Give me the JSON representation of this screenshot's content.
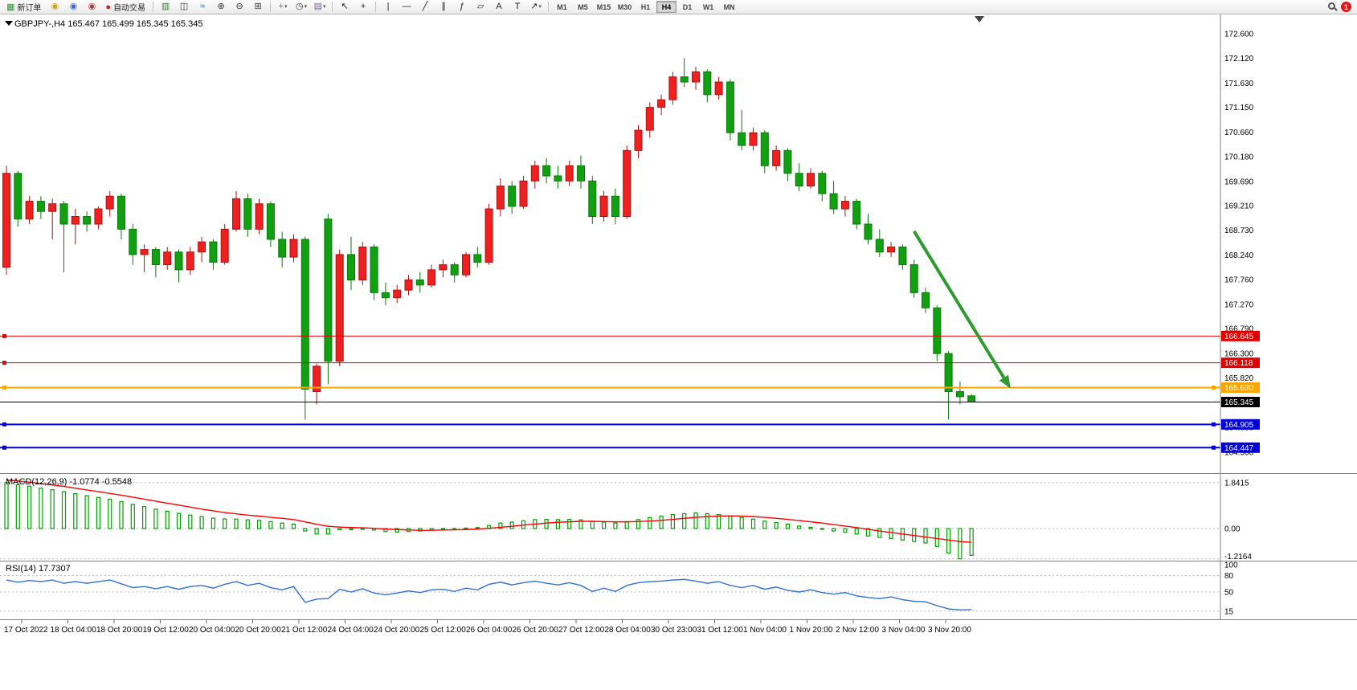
{
  "toolbar": {
    "items": [
      {
        "kind": "btn",
        "name": "new-order-button",
        "glyph": "▦",
        "color": "#2d9a2d",
        "label": "新订单"
      },
      {
        "kind": "ico",
        "name": "charts-community-icon",
        "glyph": "◉",
        "color": "#c8a020"
      },
      {
        "kind": "ico",
        "name": "profile-icon",
        "glyph": "◉",
        "color": "#4066c8"
      },
      {
        "kind": "ico",
        "name": "signals-icon",
        "glyph": "◉",
        "color": "#a04040"
      },
      {
        "kind": "btn",
        "name": "autotrading-button",
        "glyph": "●",
        "color": "#d02020",
        "label": "自动交易"
      },
      {
        "kind": "sep"
      },
      {
        "kind": "ico",
        "name": "bar-chart-icon",
        "glyph": "▥",
        "color": "#3a7a3a"
      },
      {
        "kind": "ico",
        "name": "candlestick-chart-icon",
        "glyph": "◫",
        "color": "#333333"
      },
      {
        "kind": "ico",
        "name": "line-chart-icon",
        "glyph": "≈",
        "color": "#3060c0"
      },
      {
        "kind": "ico",
        "name": "zoom-in-icon",
        "glyph": "⊕",
        "color": "#333333"
      },
      {
        "kind": "ico",
        "name": "zoom-out-icon",
        "glyph": "⊖",
        "color": "#333333"
      },
      {
        "kind": "ico",
        "name": "tile-windows-icon",
        "glyph": "⊞",
        "color": "#333333"
      },
      {
        "kind": "sep"
      },
      {
        "kind": "ico",
        "name": "indicators-icon",
        "glyph": "+",
        "color": "#2d9a2d",
        "dropdown": true
      },
      {
        "kind": "ico",
        "name": "timeframes-icon",
        "glyph": "◷",
        "color": "#333333",
        "dropdown": true
      },
      {
        "kind": "ico",
        "name": "templates-icon",
        "glyph": "▤",
        "color": "#8060a0",
        "dropdown": true
      },
      {
        "kind": "sep"
      },
      {
        "kind": "ico",
        "name": "cursor-icon",
        "glyph": "↖",
        "color": "#222222"
      },
      {
        "kind": "ico",
        "name": "crosshair-icon",
        "glyph": "+",
        "color": "#222222"
      },
      {
        "kind": "sep"
      },
      {
        "kind": "ico",
        "name": "vertical-line-icon",
        "glyph": "|",
        "color": "#222222"
      },
      {
        "kind": "ico",
        "name": "horizontal-line-icon",
        "glyph": "—",
        "color": "#222222"
      },
      {
        "kind": "ico",
        "name": "trendline-icon",
        "glyph": "╱",
        "color": "#222222"
      },
      {
        "kind": "ico",
        "name": "channel-icon",
        "glyph": "∥",
        "color": "#222222"
      },
      {
        "kind": "ico",
        "name": "fibonacci-icon",
        "glyph": "ƒ",
        "color": "#222222"
      },
      {
        "kind": "ico",
        "name": "shapes-icon",
        "glyph": "▱",
        "color": "#222222"
      },
      {
        "kind": "ico",
        "name": "text-icon",
        "glyph": "A",
        "color": "#222222"
      },
      {
        "kind": "ico",
        "name": "label-icon",
        "glyph": "T",
        "color": "#222222"
      },
      {
        "kind": "ico",
        "name": "arrows-icon",
        "glyph": "↗",
        "color": "#222222",
        "dropdown": true
      },
      {
        "kind": "sep"
      }
    ],
    "timeframes": [
      "M1",
      "M5",
      "M15",
      "M30",
      "H1",
      "H4",
      "D1",
      "W1",
      "MN"
    ],
    "active_timeframe": "H4",
    "notification_count": "1"
  },
  "chart_data": {
    "type": "candlestick",
    "symbol": "GBPJPY-",
    "timeframe": "H4",
    "ohlc_title": "GBPJPY-,H4  165.467 165.499 165.345 165.345",
    "colors": {
      "bull": "#ee2020",
      "bull_border": "#b01010",
      "bear": "#10a010",
      "bear_border": "#0a7a0a",
      "background": "#ffffff",
      "axis_text": "#000000"
    },
    "candles": [
      [
        168.0,
        170.0,
        167.85,
        169.85
      ],
      [
        169.85,
        169.9,
        168.8,
        168.95
      ],
      [
        168.95,
        169.4,
        168.85,
        169.3
      ],
      [
        169.3,
        169.4,
        168.95,
        169.1
      ],
      [
        169.1,
        169.35,
        168.55,
        169.25
      ],
      [
        169.25,
        169.3,
        167.9,
        168.85
      ],
      [
        168.85,
        169.15,
        168.45,
        169.0
      ],
      [
        169.0,
        169.1,
        168.7,
        168.85
      ],
      [
        168.85,
        169.2,
        168.75,
        169.15
      ],
      [
        169.15,
        169.5,
        169.0,
        169.4
      ],
      [
        169.4,
        169.45,
        168.55,
        168.75
      ],
      [
        168.75,
        168.85,
        168.05,
        168.25
      ],
      [
        168.25,
        168.45,
        167.9,
        168.35
      ],
      [
        168.35,
        168.4,
        167.8,
        168.05
      ],
      [
        168.05,
        168.4,
        167.95,
        168.3
      ],
      [
        168.3,
        168.35,
        167.7,
        167.95
      ],
      [
        167.95,
        168.4,
        167.85,
        168.3
      ],
      [
        168.3,
        168.6,
        168.1,
        168.5
      ],
      [
        168.5,
        168.55,
        167.95,
        168.1
      ],
      [
        168.1,
        168.85,
        168.05,
        168.75
      ],
      [
        168.75,
        169.5,
        168.7,
        169.35
      ],
      [
        169.35,
        169.45,
        168.6,
        168.75
      ],
      [
        168.75,
        169.35,
        168.65,
        169.25
      ],
      [
        169.25,
        169.3,
        168.4,
        168.55
      ],
      [
        168.55,
        168.7,
        168.0,
        168.2
      ],
      [
        168.2,
        168.65,
        168.1,
        168.55
      ],
      [
        168.55,
        168.6,
        165.0,
        165.6
      ],
      [
        165.55,
        166.1,
        165.3,
        166.05
      ],
      [
        168.95,
        169.05,
        165.7,
        166.15
      ],
      [
        166.15,
        168.35,
        166.05,
        168.25
      ],
      [
        168.25,
        168.6,
        167.55,
        167.75
      ],
      [
        167.75,
        168.5,
        167.65,
        168.4
      ],
      [
        168.4,
        168.45,
        167.35,
        167.5
      ],
      [
        167.5,
        167.7,
        167.25,
        167.4
      ],
      [
        167.4,
        167.65,
        167.3,
        167.55
      ],
      [
        167.55,
        167.85,
        167.45,
        167.75
      ],
      [
        167.75,
        167.9,
        167.5,
        167.65
      ],
      [
        167.65,
        168.05,
        167.6,
        167.95
      ],
      [
        167.95,
        168.15,
        167.8,
        168.05
      ],
      [
        168.05,
        168.1,
        167.7,
        167.85
      ],
      [
        167.85,
        168.3,
        167.8,
        168.25
      ],
      [
        168.25,
        168.4,
        168.0,
        168.1
      ],
      [
        168.1,
        169.25,
        168.05,
        169.15
      ],
      [
        169.15,
        169.75,
        169.0,
        169.6
      ],
      [
        169.6,
        169.7,
        169.05,
        169.2
      ],
      [
        169.2,
        169.8,
        169.15,
        169.7
      ],
      [
        169.7,
        170.1,
        169.55,
        170.0
      ],
      [
        170.0,
        170.15,
        169.65,
        169.8
      ],
      [
        169.8,
        170.0,
        169.55,
        169.7
      ],
      [
        169.7,
        170.1,
        169.6,
        170.0
      ],
      [
        170.0,
        170.2,
        169.55,
        169.7
      ],
      [
        169.7,
        169.8,
        168.85,
        169.0
      ],
      [
        169.0,
        169.5,
        168.9,
        169.4
      ],
      [
        169.4,
        169.55,
        168.85,
        169.0
      ],
      [
        169.0,
        170.4,
        168.95,
        170.3
      ],
      [
        170.3,
        170.8,
        170.15,
        170.7
      ],
      [
        170.7,
        171.25,
        170.55,
        171.15
      ],
      [
        171.15,
        171.4,
        171.0,
        171.3
      ],
      [
        171.3,
        171.85,
        171.2,
        171.75
      ],
      [
        171.75,
        172.12,
        171.55,
        171.65
      ],
      [
        171.65,
        171.95,
        171.5,
        171.85
      ],
      [
        171.85,
        171.9,
        171.25,
        171.4
      ],
      [
        171.4,
        171.75,
        171.3,
        171.65
      ],
      [
        171.65,
        171.7,
        170.5,
        170.65
      ],
      [
        170.65,
        171.1,
        170.3,
        170.4
      ],
      [
        170.4,
        170.75,
        170.3,
        170.65
      ],
      [
        170.65,
        170.7,
        169.85,
        170.0
      ],
      [
        170.0,
        170.4,
        169.9,
        170.3
      ],
      [
        170.3,
        170.35,
        169.7,
        169.85
      ],
      [
        169.85,
        170.05,
        169.5,
        169.6
      ],
      [
        169.6,
        169.95,
        169.55,
        169.85
      ],
      [
        169.85,
        169.9,
        169.3,
        169.45
      ],
      [
        169.45,
        169.7,
        169.05,
        169.15
      ],
      [
        169.15,
        169.4,
        169.0,
        169.3
      ],
      [
        169.3,
        169.35,
        168.75,
        168.85
      ],
      [
        168.85,
        169.05,
        168.45,
        168.55
      ],
      [
        168.55,
        168.75,
        168.2,
        168.3
      ],
      [
        168.3,
        168.5,
        168.2,
        168.4
      ],
      [
        168.4,
        168.45,
        167.95,
        168.05
      ],
      [
        168.05,
        168.15,
        167.4,
        167.5
      ],
      [
        167.5,
        167.6,
        167.1,
        167.2
      ],
      [
        167.2,
        167.25,
        166.15,
        166.3
      ],
      [
        166.3,
        166.35,
        165.0,
        165.55
      ],
      [
        165.55,
        165.75,
        165.3,
        165.45
      ],
      [
        165.467,
        165.499,
        165.345,
        165.345
      ]
    ],
    "time_labels": [
      "17 Oct 2022",
      "18 Oct 04:00",
      "18 Oct 20:00",
      "19 Oct 12:00",
      "20 Oct 04:00",
      "20 Oct 20:00",
      "21 Oct 12:00",
      "24 Oct 04:00",
      "24 Oct 20:00",
      "25 Oct 12:00",
      "26 Oct 04:00",
      "26 Oct 20:00",
      "27 Oct 12:00",
      "28 Oct 04:00",
      "30 Oct 23:00",
      "31 Oct 12:00",
      "1 Nov 04:00",
      "1 Nov 20:00",
      "2 Nov 12:00",
      "3 Nov 04:00",
      "3 Nov 20:00"
    ],
    "price_axis": {
      "regular_labels": [
        "172.600",
        "172.120",
        "171.630",
        "171.150",
        "170.660",
        "170.180",
        "169.690",
        "169.210",
        "168.730",
        "168.240",
        "167.760",
        "167.270",
        "166.790",
        "166.300",
        "165.820",
        "164.850",
        "164.360"
      ]
    },
    "hlines": [
      {
        "price": 166.645,
        "label": "166.645",
        "color": "#e00000",
        "width": 1
      },
      {
        "price": 166.118,
        "label": "166.118",
        "color": "#e00000",
        "width": 1
      },
      {
        "price": 165.63,
        "label": "165.630",
        "color": "#ffa500",
        "width": 2
      },
      {
        "price": 164.905,
        "label": "164.905",
        "color": "#0000d8",
        "width": 2
      },
      {
        "price": 164.447,
        "label": "164.447",
        "color": "#0000d8",
        "width": 2
      }
    ],
    "current_price": {
      "price": 165.345,
      "label": "165.345",
      "color": "#000000"
    },
    "trend_arrow": {
      "from_bar": 79,
      "from_price": 168.71,
      "to_bar": 87.4,
      "to_price": 165.61,
      "color": "#2e9b2e"
    },
    "macd": {
      "label": "MACD(12,26,9) -1.0774 -0.5548",
      "hist_color": "#00a000",
      "signal_color": "#ff0000",
      "axis_labels": [
        "1.8415",
        "0.00",
        "-1.2164"
      ],
      "axis_values": [
        1.8415,
        0,
        -1.2164
      ],
      "values": [
        1.8415,
        1.76,
        1.7,
        1.62,
        1.56,
        1.48,
        1.4,
        1.32,
        1.25,
        1.18,
        1.08,
        0.97,
        0.88,
        0.78,
        0.7,
        0.61,
        0.54,
        0.48,
        0.42,
        0.39,
        0.38,
        0.35,
        0.33,
        0.28,
        0.22,
        0.18,
        -0.1,
        -0.22,
        -0.22,
        -0.05,
        -0.05,
        0.0,
        -0.06,
        -0.12,
        -0.14,
        -0.12,
        -0.1,
        -0.06,
        -0.02,
        -0.02,
        0.02,
        0.04,
        0.12,
        0.22,
        0.26,
        0.31,
        0.36,
        0.37,
        0.36,
        0.37,
        0.35,
        0.28,
        0.26,
        0.22,
        0.28,
        0.36,
        0.44,
        0.5,
        0.56,
        0.6,
        0.62,
        0.6,
        0.56,
        0.5,
        0.44,
        0.38,
        0.3,
        0.24,
        0.18,
        0.1,
        0.05,
        -0.02,
        -0.1,
        -0.15,
        -0.22,
        -0.3,
        -0.36,
        -0.4,
        -0.46,
        -0.52,
        -0.58,
        -0.72,
        -0.98,
        -1.2164,
        -1.0774
      ],
      "signal": [
        1.95,
        1.91,
        1.86,
        1.81,
        1.75,
        1.69,
        1.62,
        1.55,
        1.48,
        1.41,
        1.34,
        1.26,
        1.18,
        1.1,
        1.02,
        0.94,
        0.86,
        0.78,
        0.71,
        0.64,
        0.59,
        0.54,
        0.5,
        0.45,
        0.41,
        0.36,
        0.27,
        0.17,
        0.09,
        0.06,
        0.04,
        0.03,
        0.01,
        -0.02,
        -0.04,
        -0.06,
        -0.07,
        -0.07,
        -0.06,
        -0.05,
        -0.04,
        -0.02,
        0.01,
        0.05,
        0.09,
        0.14,
        0.18,
        0.22,
        0.25,
        0.27,
        0.29,
        0.29,
        0.28,
        0.27,
        0.27,
        0.28,
        0.3,
        0.33,
        0.37,
        0.41,
        0.45,
        0.48,
        0.5,
        0.51,
        0.5,
        0.48,
        0.45,
        0.41,
        0.37,
        0.32,
        0.27,
        0.22,
        0.16,
        0.1,
        0.04,
        -0.03,
        -0.1,
        -0.16,
        -0.22,
        -0.28,
        -0.34,
        -0.4,
        -0.46,
        -0.52,
        -0.5548
      ]
    },
    "rsi": {
      "label": "RSI(14) 17.7307",
      "line_color": "#3070d8",
      "levels": [
        80,
        50,
        15
      ],
      "axis_labels": [
        "100",
        "80",
        "50",
        "15"
      ],
      "axis_values": [
        100,
        80,
        50,
        15
      ],
      "values": [
        72,
        68,
        71,
        69,
        72,
        66,
        69,
        66,
        69,
        72,
        65,
        58,
        60,
        56,
        60,
        55,
        60,
        62,
        57,
        64,
        69,
        62,
        66,
        58,
        54,
        60,
        31,
        37,
        38,
        55,
        50,
        56,
        48,
        45,
        48,
        52,
        49,
        54,
        55,
        51,
        57,
        54,
        64,
        68,
        63,
        67,
        70,
        66,
        63,
        67,
        62,
        51,
        57,
        51,
        62,
        67,
        69,
        70,
        72,
        73,
        70,
        66,
        69,
        62,
        58,
        62,
        55,
        59,
        53,
        50,
        54,
        49,
        46,
        49,
        43,
        40,
        38,
        41,
        36,
        33,
        32,
        25,
        19,
        17.2,
        17.7307
      ]
    }
  }
}
